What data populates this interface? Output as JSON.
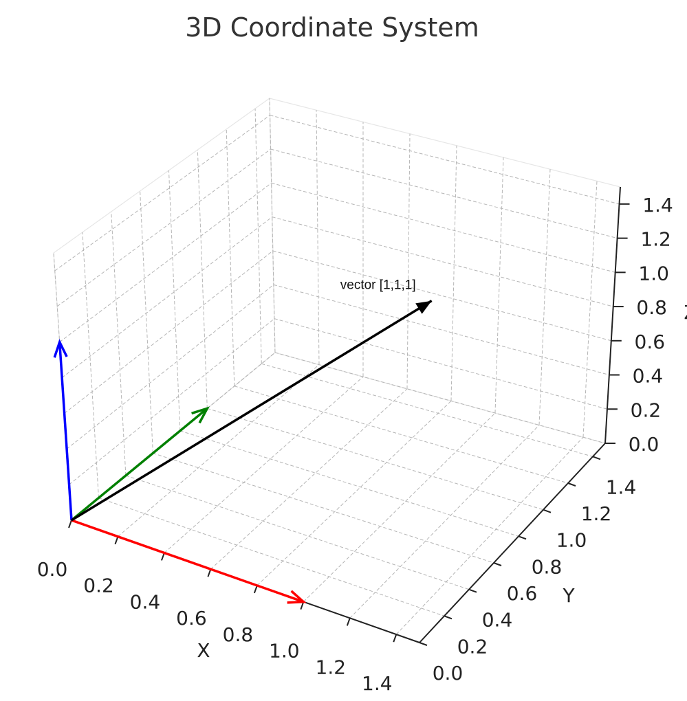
{
  "chart_data": {
    "type": "3d-quiver",
    "title": "3D Coordinate System",
    "xlabel": "X",
    "ylabel": "Y",
    "zlabel": "Z",
    "xlim": [
      0,
      1.5
    ],
    "ylim": [
      0,
      1.5
    ],
    "zlim": [
      0,
      1.5
    ],
    "ticks": [
      0.0,
      0.2,
      0.4,
      0.6,
      0.8,
      1.0,
      1.2,
      1.4
    ],
    "tick_labels": [
      "0.0",
      "0.2",
      "0.4",
      "0.6",
      "0.8",
      "1.0",
      "1.2",
      "1.4"
    ],
    "grid": true,
    "vectors": [
      {
        "origin": [
          0,
          0,
          0
        ],
        "vector": [
          1,
          0,
          0
        ],
        "color": "#ff0000"
      },
      {
        "origin": [
          0,
          0,
          0
        ],
        "vector": [
          0,
          1,
          0
        ],
        "color": "#008000"
      },
      {
        "origin": [
          0,
          0,
          0
        ],
        "vector": [
          0,
          0,
          1
        ],
        "color": "#0000ff"
      },
      {
        "origin": [
          0,
          0,
          0
        ],
        "vector": [
          1,
          1,
          1
        ],
        "color": "#000000"
      }
    ],
    "annotations": [
      {
        "text": "vector [1,1,1]",
        "position": [
          1,
          1,
          1
        ]
      }
    ]
  }
}
